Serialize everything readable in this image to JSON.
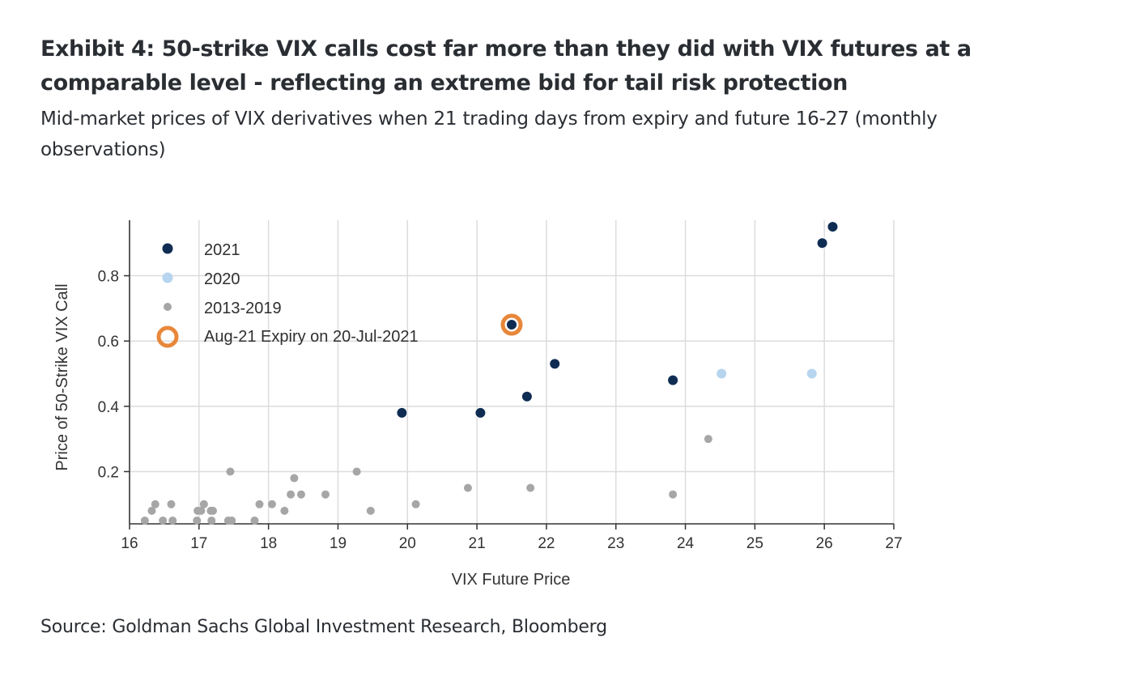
{
  "header": {
    "title": "Exhibit 4: 50-strike VIX calls cost far more than they did with VIX futures at a comparable level - reflecting an extreme bid for tail risk protection",
    "subtitle": "Mid-market prices of VIX derivatives when 21 trading days from expiry and future 16-27 (monthly observations)"
  },
  "footer": {
    "source": "Source: Goldman Sachs Global Investment Research, Bloomberg"
  },
  "colors": {
    "s2021": "#0f2d52",
    "s2020": "#b7d5ef",
    "s2013": "#a6a6a6",
    "highlight": "#e8873a",
    "grid": "#dcdcdc",
    "axis": "#333333"
  },
  "chart_data": {
    "type": "scatter",
    "xlabel": "VIX Future Price",
    "ylabel": "Price of 50-Strike VIX Call",
    "xlim": [
      16,
      27
    ],
    "ylim": [
      0.04,
      0.97
    ],
    "xticks": [
      16,
      17,
      18,
      19,
      20,
      21,
      22,
      23,
      24,
      25,
      26,
      27
    ],
    "yticks": [
      0.2,
      0.4,
      0.6,
      0.8
    ],
    "ytick_labels": [
      "0.2",
      "0.4",
      "0.6",
      "0.8"
    ],
    "grid": true,
    "legend_position": "top-left",
    "series": [
      {
        "name": "2021",
        "color_key": "s2021",
        "marker": "filled-circle-large",
        "points": [
          [
            19.92,
            0.38
          ],
          [
            21.05,
            0.38
          ],
          [
            21.72,
            0.43
          ],
          [
            22.12,
            0.53
          ],
          [
            23.82,
            0.48
          ],
          [
            25.97,
            0.9
          ],
          [
            26.12,
            0.95
          ]
        ]
      },
      {
        "name": "2020",
        "color_key": "s2020",
        "marker": "filled-circle-large",
        "points": [
          [
            24.52,
            0.5
          ],
          [
            25.82,
            0.5
          ]
        ]
      },
      {
        "name": "2013-2019",
        "color_key": "s2013",
        "marker": "filled-circle-small",
        "points": [
          [
            16.22,
            0.05
          ],
          [
            16.32,
            0.08
          ],
          [
            16.37,
            0.1
          ],
          [
            16.48,
            0.05
          ],
          [
            16.6,
            0.1
          ],
          [
            16.62,
            0.05
          ],
          [
            16.97,
            0.05
          ],
          [
            16.98,
            0.08
          ],
          [
            17.03,
            0.08
          ],
          [
            17.07,
            0.1
          ],
          [
            17.17,
            0.08
          ],
          [
            17.18,
            0.05
          ],
          [
            17.2,
            0.08
          ],
          [
            17.42,
            0.05
          ],
          [
            17.45,
            0.2
          ],
          [
            17.47,
            0.05
          ],
          [
            17.8,
            0.05
          ],
          [
            17.87,
            0.1
          ],
          [
            18.05,
            0.1
          ],
          [
            18.23,
            0.08
          ],
          [
            18.32,
            0.13
          ],
          [
            18.37,
            0.18
          ],
          [
            18.47,
            0.13
          ],
          [
            18.82,
            0.13
          ],
          [
            19.27,
            0.2
          ],
          [
            19.47,
            0.08
          ],
          [
            20.12,
            0.1
          ],
          [
            20.87,
            0.15
          ],
          [
            21.77,
            0.15
          ],
          [
            23.82,
            0.13
          ],
          [
            24.33,
            0.3
          ]
        ]
      },
      {
        "name": "Aug-21 Expiry on 20-Jul-2021",
        "color_key": "highlight",
        "marker": "ring",
        "points": [
          [
            21.5,
            0.65
          ]
        ]
      }
    ]
  }
}
